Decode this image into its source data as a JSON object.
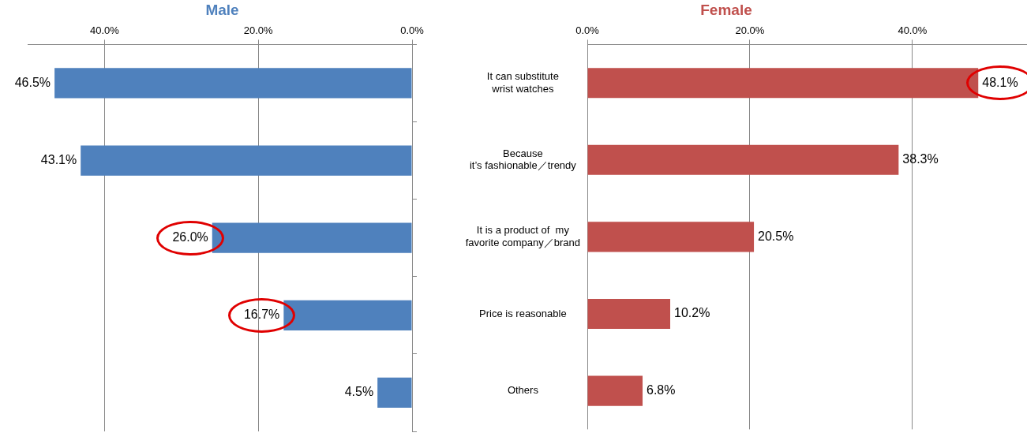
{
  "chart_data": [
    {
      "type": "bar",
      "orientation": "horizontal",
      "title": "Male",
      "categories": [
        null,
        null,
        null,
        null,
        null
      ],
      "values": [
        46.5,
        43.1,
        26.0,
        16.7,
        4.5
      ],
      "value_labels": [
        "46.5%",
        "43.1%",
        "26.0%",
        "16.7%",
        "4.5%"
      ],
      "color": "#4f81bd",
      "xlim": [
        50,
        0
      ],
      "xticks": [
        {
          "value": 40,
          "label": "40.0%"
        },
        {
          "value": 20,
          "label": "20.0%"
        },
        {
          "value": 0,
          "label": "0.0%"
        }
      ],
      "grid": "x",
      "legend": false,
      "tick_labels": "x"
    },
    {
      "type": "bar",
      "orientation": "horizontal",
      "title": "Female",
      "categories": [
        "It can substitute\nwrist watches",
        "Because\nit’s fashionable／trendy",
        "It is a product of  my\nfavorite company／brand",
        "Price is reasonable",
        "Others"
      ],
      "values": [
        48.1,
        38.3,
        20.5,
        10.2,
        6.8
      ],
      "value_labels": [
        "48.1%",
        "38.3%",
        "20.5%",
        "10.2%",
        "6.8%"
      ],
      "color": "#c0504d",
      "xlim": [
        0,
        54
      ],
      "xticks": [
        {
          "value": 0,
          "label": "0.0%"
        },
        {
          "value": 20,
          "label": "20.0%"
        },
        {
          "value": 40,
          "label": "40.0%"
        }
      ],
      "grid": "x",
      "legend": false
    }
  ]
}
